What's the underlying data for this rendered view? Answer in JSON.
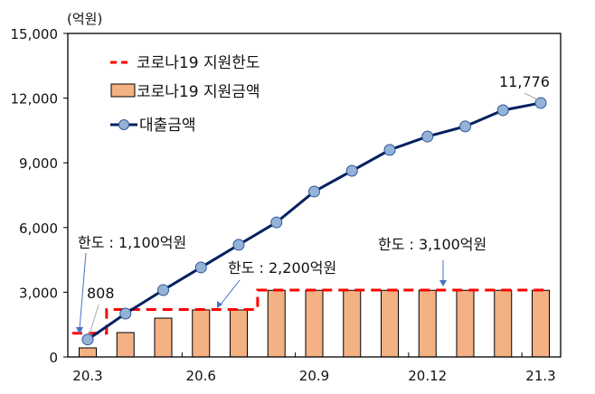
{
  "chart_data": {
    "type": "bar+line",
    "unit_label": "(억원)",
    "categories": [
      "20.3",
      "20.4",
      "20.5",
      "20.6",
      "20.7",
      "20.8",
      "20.9",
      "20.10",
      "20.11",
      "20.12",
      "21.1",
      "21.2",
      "21.3"
    ],
    "x_tick_labels": [
      "20.3",
      "20.6",
      "20.9",
      "20.12",
      "21.3"
    ],
    "ylim": [
      0,
      15000
    ],
    "y_tick_labels": [
      "0",
      "3,000",
      "6,000",
      "9,000",
      "12,000",
      "15,000"
    ],
    "y_ticks": [
      0,
      3000,
      6000,
      9000,
      12000,
      15000
    ],
    "grid": false,
    "legend_position": "top-left",
    "series": [
      {
        "name": "코로나19 지원한도",
        "kind": "dashed-step",
        "color": "#FF0000",
        "values": [
          1100,
          2200,
          2200,
          2200,
          2200,
          3100,
          3100,
          3100,
          3100,
          3100,
          3100,
          3100,
          3100
        ]
      },
      {
        "name": "코로나19 지원금액",
        "kind": "bar",
        "color": "#F4B183",
        "values": [
          420,
          1130,
          1800,
          2180,
          2180,
          3090,
          3090,
          3090,
          3090,
          3090,
          3090,
          3090,
          3090
        ]
      },
      {
        "name": "대출금액",
        "kind": "line",
        "color": "#002060",
        "marker_color": "#95B3D7",
        "values": [
          808,
          2010,
          3100,
          4150,
          5200,
          6240,
          7670,
          8630,
          9600,
          10220,
          10690,
          11440,
          11776
        ]
      }
    ],
    "annotations": [
      {
        "text": "한도 : 1,100억원",
        "category": "20.3"
      },
      {
        "text": "808",
        "category": "20.3"
      },
      {
        "text": "한도 : 2,200억원",
        "category": "20.6"
      },
      {
        "text": "한도 : 3,100억원",
        "category": "21.1"
      },
      {
        "text": "11,776",
        "category": "21.3"
      }
    ]
  }
}
